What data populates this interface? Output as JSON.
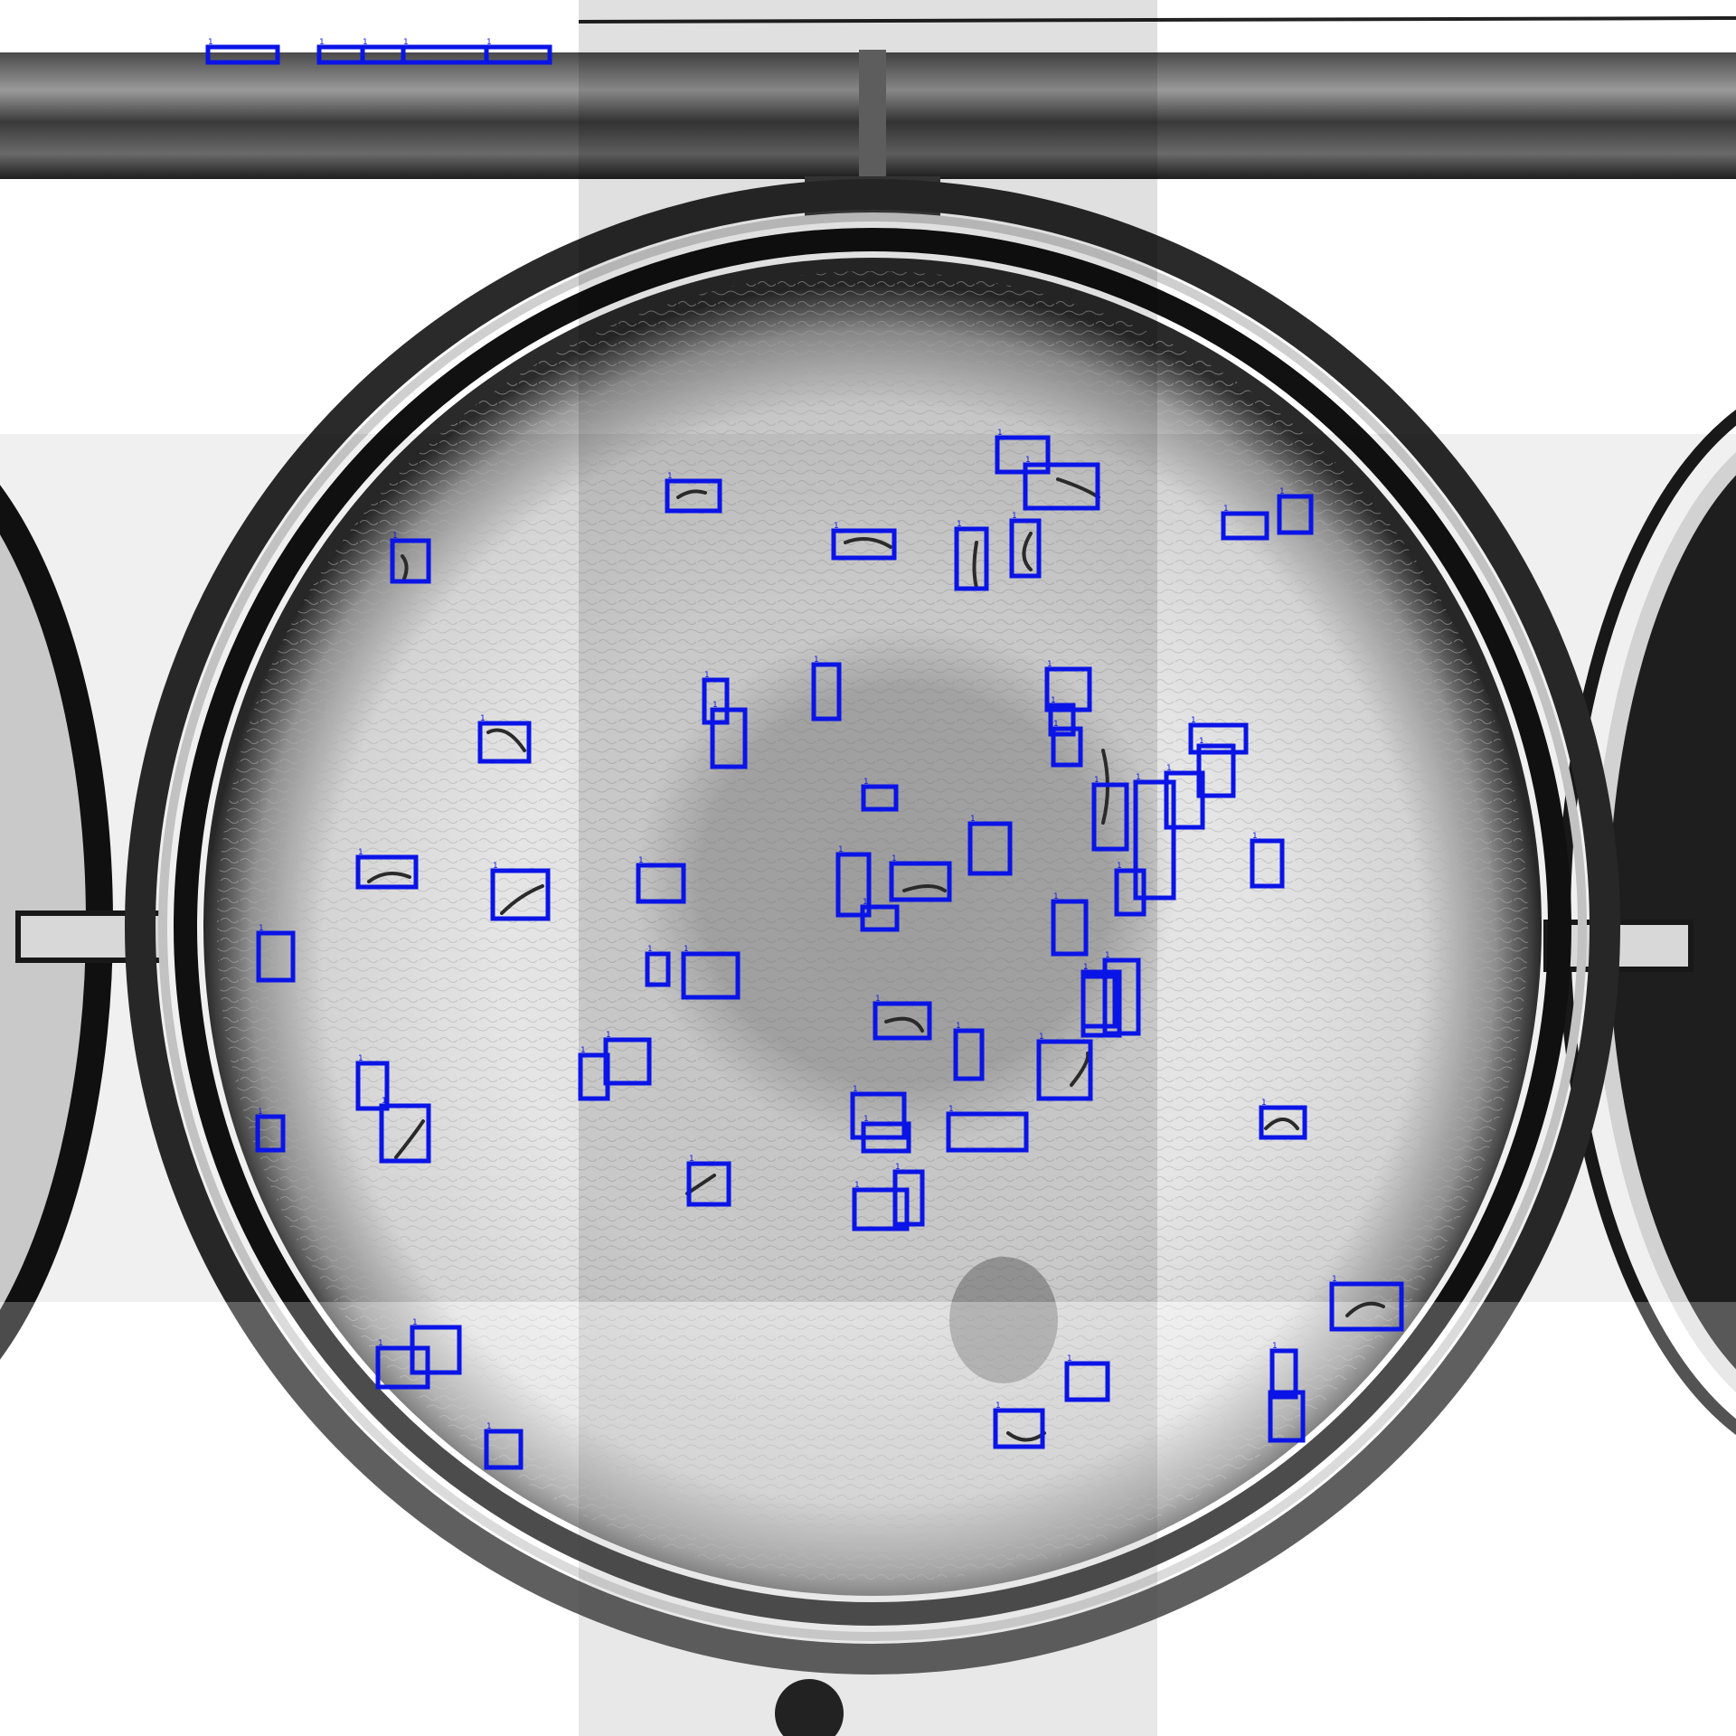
{
  "image": {
    "description_kind": "stitched microscope mosaic of a petri dish with detection boxes",
    "background_color": "#ffffff",
    "box_color": "#0a14e6"
  },
  "detections": {
    "label": "1",
    "count": 66
  }
}
